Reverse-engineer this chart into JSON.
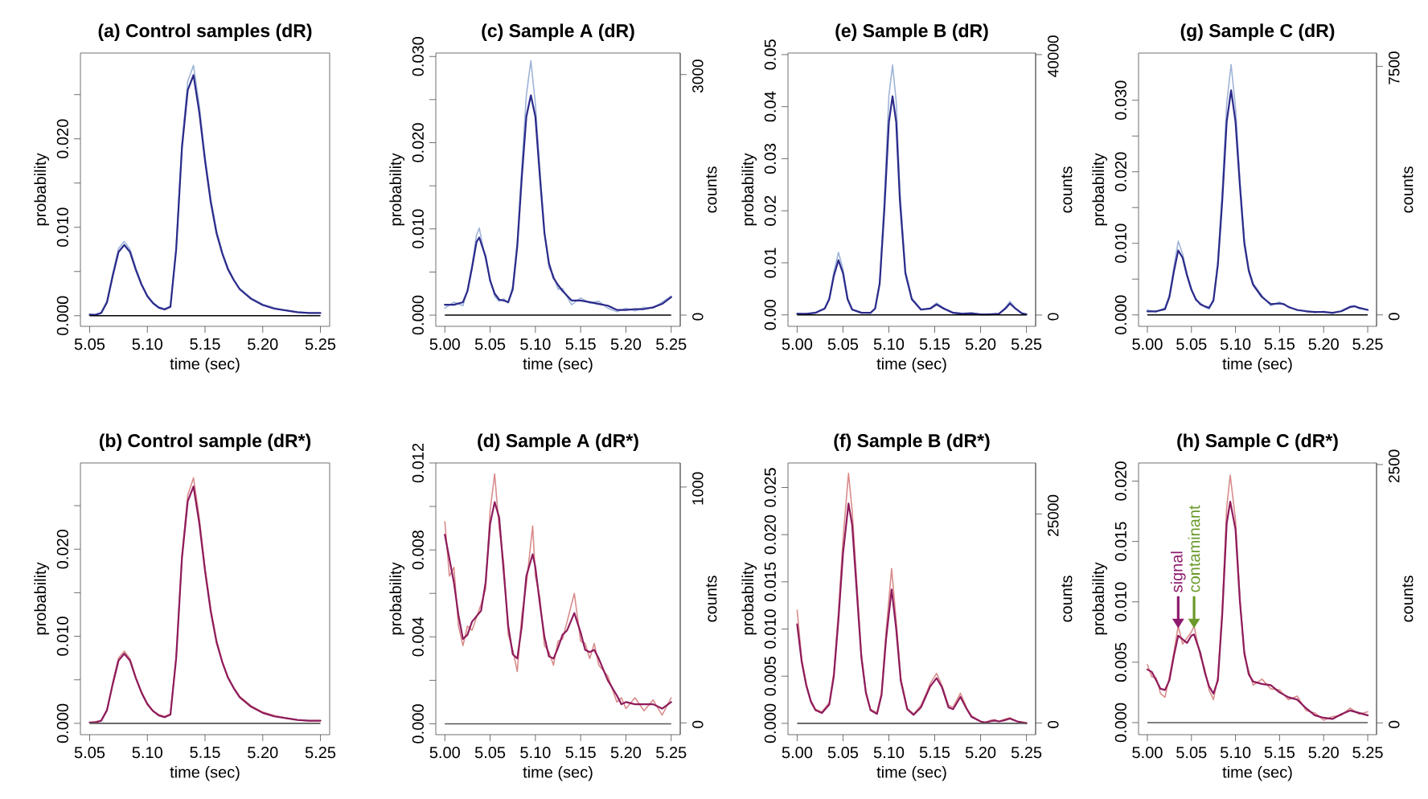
{
  "chart_data": [
    {
      "type": "line",
      "title": "(a) Control samples (dR)",
      "xlabel": "time (sec)",
      "ylabel": "probability",
      "x": [
        5.05,
        5.055,
        5.06,
        5.065,
        5.07,
        5.075,
        5.08,
        5.085,
        5.09,
        5.095,
        5.1,
        5.105,
        5.11,
        5.115,
        5.12,
        5.125,
        5.13,
        5.135,
        5.14,
        5.145,
        5.15,
        5.155,
        5.16,
        5.165,
        5.17,
        5.175,
        5.18,
        5.19,
        5.2,
        5.21,
        5.22,
        5.23,
        5.24,
        5.25
      ],
      "series": [
        {
          "color": "#9fb4d8",
          "values": [
            0.0002,
            0.0001,
            0.0004,
            0.0017,
            0.0048,
            0.0076,
            0.0084,
            0.0075,
            0.0054,
            0.0036,
            0.0023,
            0.0015,
            0.001,
            0.0008,
            0.0011,
            0.0078,
            0.0195,
            0.0265,
            0.0283,
            0.0238,
            0.018,
            0.0132,
            0.0096,
            0.0072,
            0.0054,
            0.0041,
            0.0031,
            0.002,
            0.0013,
            0.0009,
            0.0006,
            0.0004,
            0.0003,
            0.0003
          ]
        },
        {
          "color": "#2b2a8a",
          "values": [
            0.0001,
            0.0001,
            0.0003,
            0.0015,
            0.0045,
            0.0072,
            0.008,
            0.0072,
            0.0052,
            0.0035,
            0.0022,
            0.0014,
            0.0009,
            0.0007,
            0.001,
            0.0075,
            0.019,
            0.0255,
            0.0272,
            0.023,
            0.0175,
            0.0128,
            0.0093,
            0.007,
            0.0052,
            0.004,
            0.003,
            0.0019,
            0.0012,
            0.0008,
            0.0006,
            0.0004,
            0.0003,
            0.0003
          ]
        }
      ],
      "xlim": [
        5.042,
        5.258
      ],
      "ylim": [
        -0.0012,
        0.0297
      ],
      "xticks": [
        5.05,
        {
          "value": 5.1,
          "label": "5.10"
        },
        5.15,
        {
          "value": 5.2,
          "label": "5.20"
        },
        5.25
      ],
      "yticks": [
        {
          "value": 0,
          "label": "0.000"
        },
        {
          "value": 0.005,
          "label": null
        },
        {
          "value": 0.01,
          "label": "0.010"
        },
        {
          "value": 0.015,
          "label": null
        },
        {
          "value": 0.02,
          "label": "0.020"
        },
        {
          "value": 0.025,
          "label": null
        }
      ],
      "ref_lines": [
        {
          "axis": "y",
          "value": 0,
          "color": "#000000"
        }
      ]
    },
    {
      "type": "line",
      "title": "(c) Sample A (dR)",
      "xlabel": "time (sec)",
      "ylabel": "probability",
      "y2label": "counts",
      "x": [
        5.0,
        5.01,
        5.02,
        5.025,
        5.03,
        5.035,
        5.038,
        5.045,
        5.05,
        5.055,
        5.06,
        5.065,
        5.07,
        5.075,
        5.08,
        5.085,
        5.09,
        5.095,
        5.1,
        5.105,
        5.11,
        5.115,
        5.12,
        5.125,
        5.13,
        5.14,
        5.15,
        5.16,
        5.17,
        5.18,
        5.19,
        5.2,
        5.21,
        5.22,
        5.23,
        5.24,
        5.25
      ],
      "series": [
        {
          "color": "#9fb4d8",
          "values": [
            0.0008,
            0.0015,
            0.0011,
            0.003,
            0.0058,
            0.0093,
            0.0101,
            0.0064,
            0.0042,
            0.0022,
            0.0016,
            0.0019,
            0.0014,
            0.0034,
            0.0085,
            0.0172,
            0.0255,
            0.0295,
            0.0245,
            0.0168,
            0.0098,
            0.0055,
            0.0046,
            0.003,
            0.0031,
            0.0012,
            0.002,
            0.0014,
            0.0016,
            0.0008,
            0.0004,
            0.0008,
            0.0005,
            0.0009,
            0.0008,
            0.0015,
            0.0022
          ]
        },
        {
          "color": "#2b2a8a",
          "values": [
            0.0012,
            0.0012,
            0.0015,
            0.0028,
            0.0055,
            0.0085,
            0.009,
            0.0068,
            0.004,
            0.0025,
            0.0018,
            0.0017,
            0.0015,
            0.003,
            0.008,
            0.016,
            0.023,
            0.0255,
            0.023,
            0.016,
            0.0095,
            0.006,
            0.0043,
            0.0035,
            0.0028,
            0.0017,
            0.0017,
            0.0015,
            0.0013,
            0.0011,
            0.0006,
            0.0006,
            0.0007,
            0.0007,
            0.0009,
            0.0013,
            0.0021
          ]
        }
      ],
      "xlim": [
        4.99,
        5.26
      ],
      "ylim": [
        -0.0013,
        0.0304
      ],
      "y2lim": [
        -140,
        3268
      ],
      "xticks": [
        {
          "value": 5,
          "label": "5.00"
        },
        5.05,
        {
          "value": 5.1,
          "label": "5.10"
        },
        5.15,
        {
          "value": 5.2,
          "label": "5.20"
        },
        5.25
      ],
      "yticks": [
        {
          "value": 0,
          "label": "0.000"
        },
        {
          "value": 0.005,
          "label": null
        },
        {
          "value": 0.01,
          "label": "0.010"
        },
        {
          "value": 0.015,
          "label": null
        },
        {
          "value": 0.02,
          "label": "0.020"
        },
        {
          "value": 0.025,
          "label": null
        },
        {
          "value": 0.03,
          "label": "0.030"
        }
      ],
      "y2ticks": [
        0,
        3000
      ],
      "ref_lines": [
        {
          "axis": "y",
          "value": 0,
          "color": "#000000"
        }
      ]
    },
    {
      "type": "line",
      "title": "(e) Sample B (dR)",
      "xlabel": "time (sec)",
      "ylabel": "probability",
      "y2label": "counts",
      "x": [
        5.0,
        5.01,
        5.02,
        5.025,
        5.03,
        5.035,
        5.04,
        5.045,
        5.05,
        5.055,
        5.06,
        5.07,
        5.08,
        5.085,
        5.09,
        5.095,
        5.1,
        5.104,
        5.108,
        5.112,
        5.118,
        5.125,
        5.135,
        5.145,
        5.152,
        5.16,
        5.17,
        5.18,
        5.19,
        5.2,
        5.21,
        5.22,
        5.227,
        5.232,
        5.238,
        5.245,
        5.25
      ],
      "series": [
        {
          "color": "#9fb4d8",
          "values": [
            0.0003,
            0.0001,
            0.0005,
            0.0009,
            0.0013,
            0.0033,
            0.0082,
            0.012,
            0.0088,
            0.0032,
            0.0011,
            0.0005,
            0.0003,
            0.0013,
            0.0065,
            0.022,
            0.042,
            0.048,
            0.041,
            0.024,
            0.0085,
            0.0032,
            0.0011,
            0.0013,
            0.0023,
            0.0013,
            0.0005,
            0.0003,
            0.0004,
            0.0001,
            0.0002,
            0.0002,
            0.0014,
            0.0026,
            0.0013,
            0.0004,
            0.0001
          ]
        },
        {
          "color": "#2b2a8a",
          "values": [
            0.0002,
            0.0002,
            0.0004,
            0.0008,
            0.0012,
            0.003,
            0.0075,
            0.0105,
            0.008,
            0.003,
            0.001,
            0.0004,
            0.0004,
            0.0012,
            0.006,
            0.02,
            0.037,
            0.042,
            0.037,
            0.022,
            0.008,
            0.003,
            0.001,
            0.0012,
            0.002,
            0.0012,
            0.0004,
            0.0002,
            0.0003,
            0.0001,
            0.0001,
            0.0002,
            0.0012,
            0.0022,
            0.0012,
            0.0003,
            0.0001
          ]
        }
      ],
      "xlim": [
        4.99,
        5.26
      ],
      "ylim": [
        -0.0022,
        0.0503
      ],
      "y2lim": [
        -1730,
        40240
      ],
      "xticks": [
        {
          "value": 5,
          "label": "5.00"
        },
        5.05,
        {
          "value": 5.1,
          "label": "5.10"
        },
        5.15,
        {
          "value": 5.2,
          "label": "5.20"
        },
        5.25
      ],
      "yticks": [
        {
          "value": 0,
          "label": "0.00"
        },
        0.01,
        0.02,
        0.03,
        0.04,
        0.05
      ],
      "y2ticks": [
        0,
        40000
      ],
      "ref_lines": [
        {
          "axis": "y",
          "value": 0,
          "color": "#000000"
        }
      ]
    },
    {
      "type": "line",
      "title": "(g) Sample C (dR)",
      "xlabel": "time (sec)",
      "ylabel": "probability",
      "y2label": "counts",
      "x": [
        5.0,
        5.01,
        5.02,
        5.025,
        5.03,
        5.035,
        5.04,
        5.045,
        5.05,
        5.055,
        5.06,
        5.065,
        5.07,
        5.075,
        5.08,
        5.085,
        5.09,
        5.095,
        5.1,
        5.105,
        5.11,
        5.115,
        5.12,
        5.13,
        5.14,
        5.15,
        5.155,
        5.16,
        5.17,
        5.18,
        5.19,
        5.2,
        5.21,
        5.22,
        5.23,
        5.235,
        5.24,
        5.25
      ],
      "series": [
        {
          "color": "#9fb4d8",
          "values": [
            0.0007,
            0.0004,
            0.001,
            0.0028,
            0.0066,
            0.0103,
            0.0085,
            0.0058,
            0.0037,
            0.002,
            0.0017,
            0.0011,
            0.0008,
            0.0022,
            0.0076,
            0.0175,
            0.0295,
            0.035,
            0.029,
            0.019,
            0.0105,
            0.0065,
            0.0044,
            0.0027,
            0.0013,
            0.0018,
            0.0014,
            0.0012,
            0.0006,
            0.0006,
            0.0003,
            0.0005,
            0.0002,
            0.0006,
            0.0012,
            0.0013,
            0.0009,
            0.0007
          ]
        },
        {
          "color": "#2b2a8a",
          "values": [
            0.0005,
            0.0005,
            0.0008,
            0.0025,
            0.006,
            0.009,
            0.008,
            0.0055,
            0.0035,
            0.0022,
            0.0015,
            0.0012,
            0.001,
            0.002,
            0.007,
            0.016,
            0.027,
            0.0314,
            0.027,
            0.018,
            0.01,
            0.0062,
            0.0042,
            0.0025,
            0.0015,
            0.0016,
            0.0015,
            0.0011,
            0.0007,
            0.0005,
            0.0004,
            0.0004,
            0.0003,
            0.0005,
            0.0011,
            0.0012,
            0.001,
            0.0007
          ]
        }
      ],
      "xlim": [
        4.99,
        5.26
      ],
      "ylim": [
        -0.0016,
        0.0366
      ],
      "y2lim": [
        -345,
        7904
      ],
      "xticks": [
        {
          "value": 5,
          "label": "5.00"
        },
        5.05,
        {
          "value": 5.1,
          "label": "5.10"
        },
        5.15,
        {
          "value": 5.2,
          "label": "5.20"
        },
        5.25
      ],
      "yticks": [
        {
          "value": 0,
          "label": "0.000"
        },
        {
          "value": 0.005,
          "label": null
        },
        {
          "value": 0.01,
          "label": "0.010"
        },
        {
          "value": 0.015,
          "label": null
        },
        {
          "value": 0.02,
          "label": "0.020"
        },
        {
          "value": 0.025,
          "label": null
        },
        {
          "value": 0.03,
          "label": "0.030"
        }
      ],
      "y2ticks": [
        0,
        7500
      ],
      "ref_lines": [
        {
          "axis": "y",
          "value": 0,
          "color": "#000000"
        }
      ]
    },
    {
      "type": "line",
      "title": "(b) Control sample (dR*)",
      "xlabel": "time (sec)",
      "ylabel": "probability",
      "x": [
        5.05,
        5.055,
        5.06,
        5.065,
        5.07,
        5.075,
        5.08,
        5.085,
        5.09,
        5.095,
        5.1,
        5.105,
        5.11,
        5.115,
        5.12,
        5.125,
        5.13,
        5.135,
        5.14,
        5.145,
        5.15,
        5.155,
        5.16,
        5.165,
        5.17,
        5.175,
        5.18,
        5.19,
        5.2,
        5.21,
        5.22,
        5.23,
        5.24,
        5.25
      ],
      "series": [
        {
          "color": "#d98c8c",
          "values": [
            0.0001,
            0.0002,
            0.0003,
            0.0016,
            0.0047,
            0.0075,
            0.0083,
            0.0074,
            0.0053,
            0.0036,
            0.0023,
            0.0014,
            0.001,
            0.0008,
            0.0011,
            0.0077,
            0.0193,
            0.0262,
            0.0282,
            0.0236,
            0.0178,
            0.0131,
            0.0095,
            0.0071,
            0.0053,
            0.0041,
            0.0031,
            0.002,
            0.0013,
            0.0009,
            0.0006,
            0.0004,
            0.0003,
            0.0003
          ]
        },
        {
          "color": "#8e1b5c",
          "values": [
            0.0001,
            0.0001,
            0.0003,
            0.0015,
            0.0045,
            0.0072,
            0.008,
            0.0072,
            0.0052,
            0.0035,
            0.0022,
            0.0014,
            0.0009,
            0.0007,
            0.001,
            0.0075,
            0.019,
            0.0255,
            0.0272,
            0.023,
            0.0175,
            0.0128,
            0.0093,
            0.007,
            0.0052,
            0.004,
            0.003,
            0.0019,
            0.0012,
            0.0008,
            0.0006,
            0.0004,
            0.0003,
            0.0003
          ]
        }
      ],
      "xlim": [
        5.042,
        5.258
      ],
      "ylim": [
        -0.0013,
        0.0299
      ],
      "xticks": [
        5.05,
        {
          "value": 5.1,
          "label": "5.10"
        },
        5.15,
        {
          "value": 5.2,
          "label": "5.20"
        },
        5.25
      ],
      "yticks": [
        {
          "value": 0,
          "label": "0.000"
        },
        {
          "value": 0.005,
          "label": null
        },
        {
          "value": 0.01,
          "label": "0.010"
        },
        {
          "value": 0.015,
          "label": null
        },
        {
          "value": 0.02,
          "label": "0.020"
        },
        {
          "value": 0.025,
          "label": null
        }
      ],
      "ref_lines": [
        {
          "axis": "y",
          "value": 0,
          "color": "#555555"
        }
      ]
    },
    {
      "type": "line",
      "title": "(d) Sample A (dR*)",
      "xlabel": "time (sec)",
      "ylabel": "probability",
      "y2label": "counts",
      "x": [
        5.0,
        5.005,
        5.01,
        5.015,
        5.02,
        5.025,
        5.03,
        5.04,
        5.045,
        5.05,
        5.055,
        5.06,
        5.065,
        5.07,
        5.075,
        5.08,
        5.085,
        5.09,
        5.097,
        5.1,
        5.105,
        5.11,
        5.115,
        5.12,
        5.125,
        5.13,
        5.135,
        5.143,
        5.15,
        5.155,
        5.16,
        5.165,
        5.17,
        5.18,
        5.19,
        5.195,
        5.2,
        5.21,
        5.22,
        5.23,
        5.24,
        5.25
      ],
      "series": [
        {
          "color": "#d98c8c",
          "values": [
            0.0093,
            0.0068,
            0.0072,
            0.0045,
            0.0036,
            0.0045,
            0.0043,
            0.0055,
            0.0062,
            0.0098,
            0.0115,
            0.009,
            0.0074,
            0.0041,
            0.0034,
            0.0024,
            0.005,
            0.0064,
            0.0091,
            0.0068,
            0.0058,
            0.0036,
            0.0033,
            0.0027,
            0.0038,
            0.0039,
            0.0047,
            0.006,
            0.0038,
            0.0037,
            0.003,
            0.0037,
            0.0027,
            0.0022,
            0.001,
            0.0012,
            0.0007,
            0.0012,
            0.0006,
            0.0011,
            0.0004,
            0.0012
          ]
        },
        {
          "color": "#8e1b5c",
          "values": [
            0.0087,
            0.0076,
            0.0065,
            0.005,
            0.0039,
            0.0041,
            0.0047,
            0.0052,
            0.0065,
            0.0092,
            0.0102,
            0.0095,
            0.007,
            0.0045,
            0.0032,
            0.003,
            0.0045,
            0.0068,
            0.0078,
            0.0072,
            0.0055,
            0.004,
            0.0031,
            0.003,
            0.0035,
            0.0041,
            0.0043,
            0.0051,
            0.0042,
            0.0034,
            0.0033,
            0.0034,
            0.003,
            0.002,
            0.0013,
            0.0009,
            0.001,
            0.0009,
            0.0009,
            0.0009,
            0.0007,
            0.001
          ]
        }
      ],
      "xlim": [
        4.99,
        5.26
      ],
      "ylim": [
        -0.0005,
        0.012
      ],
      "y2lim": [
        -50,
        1102
      ],
      "xticks": [
        {
          "value": 5,
          "label": "5.00"
        },
        5.05,
        {
          "value": 5.1,
          "label": "5.10"
        },
        5.15,
        {
          "value": 5.2,
          "label": "5.20"
        },
        5.25
      ],
      "yticks": [
        {
          "value": 0,
          "label": "0.000"
        },
        {
          "value": 0.002,
          "label": null
        },
        0.004,
        {
          "value": 0.006,
          "label": null
        },
        0.008,
        {
          "value": 0.01,
          "label": null
        },
        0.012
      ],
      "y2ticks": [
        0,
        1000
      ],
      "ref_lines": [
        {
          "axis": "y",
          "value": 0,
          "color": "#555555"
        }
      ]
    },
    {
      "type": "line",
      "title": "(f) Sample B (dR*)",
      "xlabel": "time (sec)",
      "ylabel": "probability",
      "y2label": "counts",
      "x": [
        5.0,
        5.005,
        5.01,
        5.015,
        5.02,
        5.027,
        5.035,
        5.04,
        5.045,
        5.05,
        5.056,
        5.06,
        5.065,
        5.07,
        5.075,
        5.08,
        5.087,
        5.092,
        5.097,
        5.103,
        5.108,
        5.113,
        5.12,
        5.127,
        5.135,
        5.14,
        5.145,
        5.152,
        5.158,
        5.165,
        5.17,
        5.178,
        5.185,
        5.19,
        5.2,
        5.205,
        5.21,
        5.215,
        5.22,
        5.225,
        5.232,
        5.24,
        5.25
      ],
      "series": [
        {
          "color": "#d98c8c",
          "values": [
            0.012,
            0.0068,
            0.0042,
            0.0024,
            0.0015,
            0.0012,
            0.0022,
            0.0054,
            0.0118,
            0.0195,
            0.0265,
            0.0225,
            0.015,
            0.0074,
            0.0034,
            0.0015,
            0.0011,
            0.0033,
            0.0098,
            0.0164,
            0.0108,
            0.0048,
            0.0016,
            0.001,
            0.0019,
            0.003,
            0.0042,
            0.0053,
            0.004,
            0.0019,
            0.0017,
            0.0032,
            0.0016,
            0.0008,
            0.0002,
            0.0001,
            0.0003,
            0.0004,
            0.0002,
            0.0004,
            0.0006,
            0.0002,
            0.0001
          ]
        },
        {
          "color": "#8e1b5c",
          "values": [
            0.0105,
            0.0065,
            0.004,
            0.0023,
            0.0014,
            0.0011,
            0.002,
            0.005,
            0.011,
            0.018,
            0.0233,
            0.021,
            0.014,
            0.007,
            0.0032,
            0.0014,
            0.001,
            0.003,
            0.009,
            0.0142,
            0.01,
            0.0045,
            0.0015,
            0.0009,
            0.0017,
            0.0028,
            0.0039,
            0.0048,
            0.0038,
            0.0017,
            0.0015,
            0.0028,
            0.0015,
            0.0007,
            0.0002,
            0.0001,
            0.0002,
            0.0003,
            0.0002,
            0.0003,
            0.0005,
            0.0002,
            0.0
          ]
        }
      ],
      "xlim": [
        4.99,
        5.26
      ],
      "ylim": [
        -0.0012,
        0.0276
      ],
      "y2lim": [
        -1400,
        31100
      ],
      "xticks": [
        {
          "value": 5,
          "label": "5.00"
        },
        5.05,
        {
          "value": 5.1,
          "label": "5.10"
        },
        5.15,
        {
          "value": 5.2,
          "label": "5.20"
        },
        5.25
      ],
      "yticks": [
        {
          "value": 0,
          "label": "0.000"
        },
        0.005,
        {
          "value": 0.01,
          "label": "0.010"
        },
        0.015,
        {
          "value": 0.02,
          "label": "0.020"
        },
        0.025
      ],
      "y2ticks": [
        0,
        25000
      ],
      "ref_lines": [
        {
          "axis": "y",
          "value": 0,
          "color": "#555555"
        }
      ]
    },
    {
      "type": "line",
      "title": "(h) Sample C (dR*)",
      "xlabel": "time (sec)",
      "ylabel": "probability",
      "y2label": "counts",
      "x": [
        5.0,
        5.005,
        5.01,
        5.015,
        5.02,
        5.025,
        5.03,
        5.035,
        5.04,
        5.045,
        5.05,
        5.053,
        5.06,
        5.065,
        5.07,
        5.075,
        5.08,
        5.085,
        5.09,
        5.094,
        5.1,
        5.105,
        5.11,
        5.115,
        5.12,
        5.13,
        5.14,
        5.15,
        5.16,
        5.17,
        5.18,
        5.19,
        5.2,
        5.21,
        5.22,
        5.23,
        5.24,
        5.25
      ],
      "series": [
        {
          "color": "#d98c8c",
          "values": [
            0.0048,
            0.0038,
            0.0037,
            0.0024,
            0.0021,
            0.0038,
            0.0058,
            0.008,
            0.0065,
            0.007,
            0.0075,
            0.008,
            0.0055,
            0.0045,
            0.0027,
            0.0019,
            0.0038,
            0.0095,
            0.0178,
            0.0205,
            0.0168,
            0.0104,
            0.0055,
            0.0043,
            0.0031,
            0.0036,
            0.0028,
            0.0027,
            0.0019,
            0.0022,
            0.001,
            0.0008,
            0.0002,
            0.0005,
            0.0006,
            0.0012,
            0.0007,
            0.0009
          ]
        },
        {
          "color": "#8e1b5c",
          "values": [
            0.0044,
            0.0042,
            0.0035,
            0.0028,
            0.0027,
            0.0035,
            0.0055,
            0.0072,
            0.0069,
            0.0066,
            0.0072,
            0.0073,
            0.0058,
            0.0042,
            0.003,
            0.0024,
            0.0035,
            0.009,
            0.0165,
            0.0183,
            0.016,
            0.01,
            0.0058,
            0.004,
            0.0034,
            0.0032,
            0.0031,
            0.0025,
            0.0021,
            0.0019,
            0.0012,
            0.0006,
            0.0004,
            0.0003,
            0.0007,
            0.001,
            0.0008,
            0.0006
          ]
        }
      ],
      "xlim": [
        4.99,
        5.26
      ],
      "ylim": [
        -0.001,
        0.0215
      ],
      "y2lim": [
        -114,
        2515
      ],
      "xticks": [
        {
          "value": 5,
          "label": "5.00"
        },
        5.05,
        {
          "value": 5.1,
          "label": "5.10"
        },
        5.15,
        {
          "value": 5.2,
          "label": "5.20"
        },
        5.25
      ],
      "yticks": [
        {
          "value": 0,
          "label": "0.000"
        },
        0.005,
        {
          "value": 0.01,
          "label": "0.010"
        },
        0.015,
        {
          "value": 0.02,
          "label": "0.020"
        }
      ],
      "y2ticks": [
        0,
        2500
      ],
      "ref_lines": [
        {
          "axis": "y",
          "value": 0,
          "color": "#555555"
        }
      ],
      "annotations": [
        {
          "text": "signal",
          "x": 5.035,
          "y": 0.0078
        },
        {
          "text": "contaminant",
          "x": 5.053,
          "y": 0.0078
        }
      ]
    }
  ]
}
